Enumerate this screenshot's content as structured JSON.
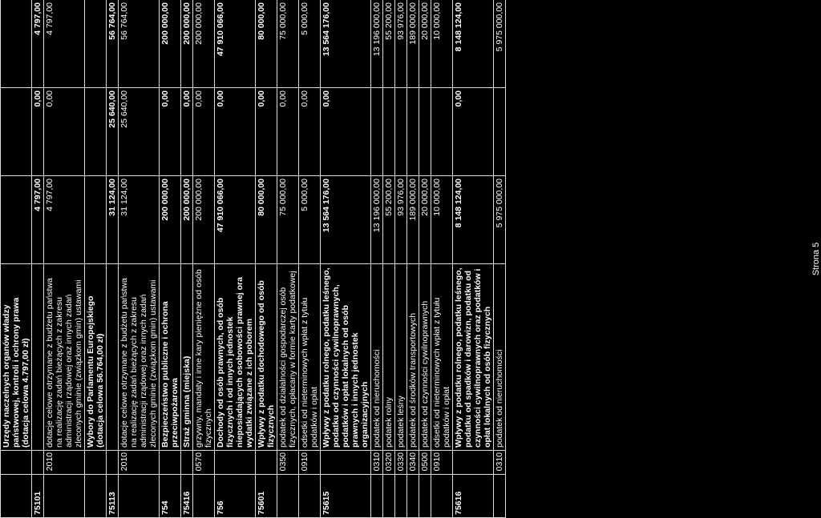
{
  "rows": [
    {
      "sec": "",
      "code": "",
      "desc": "Urzędy naczelnych organów władzy państwowej, kontroli i ochrony prawa (dotacja celowa 4.797,00 zł)",
      "a": "",
      "b": "",
      "c": "",
      "bold": true
    },
    {
      "sec": "75101",
      "code": "",
      "desc": "",
      "a": "4 797,00",
      "b": "0,00",
      "c": "4 797,00",
      "bold": true
    },
    {
      "sec": "",
      "code": "2010",
      "desc": "dotacje celowe otrzymane z budżetu państwa na realizację zadań bieżących z zakresu administracji rządowej oraz innych zadań zleconych gminie (związkom gmin) ustawami",
      "a": "4 797,00",
      "b": "0,00",
      "c": "4 797,00",
      "bold": false
    },
    {
      "sec": "",
      "code": "",
      "desc": "Wybory do Parlamentu Europejskiego (dotacja celowa 56.764,00 zł)",
      "a": "",
      "b": "",
      "c": "",
      "bold": true
    },
    {
      "sec": "75113",
      "code": "",
      "desc": "",
      "a": "31 124,00",
      "b": "25 640,00",
      "c": "56 764,00",
      "bold": true
    },
    {
      "sec": "",
      "code": "2010",
      "desc": "dotacje celowe otrzymane z budżetu państwa na realizację zadań bieżących z zakresu administracji rządowej oraz innych zadań zleconych gminie (związkom gmin) ustawami",
      "a": "31 124,00",
      "b": "25 640,00",
      "c": "56 764,00",
      "bold": false
    },
    {
      "sec": "754",
      "code": "",
      "desc": "Bezpieczeństwo publiczne i ochrona przeciwpożarowa",
      "a": "200 000,00",
      "b": "0,00",
      "c": "200 000,00",
      "bold": true
    },
    {
      "sec": "75416",
      "code": "",
      "desc": "Straż gminna (miejska)",
      "a": "200 000,00",
      "b": "0,00",
      "c": "200 000,00",
      "bold": true
    },
    {
      "sec": "",
      "code": "0570",
      "desc": "grzywny, mandaty i inne kary pieniężne od osób fizycznych",
      "a": "200 000,00",
      "b": "0,00",
      "c": "200 000,00",
      "bold": false
    },
    {
      "sec": "756",
      "code": "",
      "desc": "Dochody od osób prawnych, od osób fizycznych i od innych jednostek nieposiadających osobowości prawnej ora wydatki związane z ich poborem",
      "a": "47 910 066,00",
      "b": "0,00",
      "c": "47 910 066,00",
      "bold": true
    },
    {
      "sec": "75601",
      "code": "",
      "desc": "Wpływy z podatku dochodowego od osób fizycznych",
      "a": "80 000,00",
      "b": "0,00",
      "c": "80 000,00",
      "bold": true
    },
    {
      "sec": "",
      "code": "0350",
      "desc": "podatek od działalności gospodarczej osób fizycznych, opłacany w formie karty podatkowej",
      "a": "75 000,00",
      "b": "0,00",
      "c": "75 000,00",
      "bold": false
    },
    {
      "sec": "",
      "code": "0910",
      "desc": "odsetki od nieterminowych wpłat z tytułu podatków i opłat",
      "a": "5 000,00",
      "b": "0,00",
      "c": "5 000,00",
      "bold": false
    },
    {
      "sec": "75615",
      "code": "",
      "desc": "Wpływy z podatku rolnego, podatku leśnego, podatku od czynności cywilnoprawnych, podatków i opłat lokalnych od osób prawnych i innych jednostek organizacyjnych",
      "a": "13 564 176,00",
      "b": "0,00",
      "c": "13 564 176,00",
      "bold": true
    },
    {
      "sec": "",
      "code": "0310",
      "desc": "podatek od nieruchomości",
      "a": "13 196 000,00",
      "b": "",
      "c": "13 196 000,00",
      "bold": false
    },
    {
      "sec": "",
      "code": "0320",
      "desc": "podatek rolny",
      "a": "55 200,00",
      "b": "",
      "c": "55 200,00",
      "bold": false
    },
    {
      "sec": "",
      "code": "0330",
      "desc": "podatek leśny",
      "a": "93 976,00",
      "b": "",
      "c": "93 976,00",
      "bold": false
    },
    {
      "sec": "",
      "code": "0340",
      "desc": "podatek od środków transportowych",
      "a": "189 000,00",
      "b": "",
      "c": "189 000,00",
      "bold": false
    },
    {
      "sec": "",
      "code": "0500",
      "desc": "podatek od czynności cywilnoprawnych",
      "a": "20 000,00",
      "b": "",
      "c": "20 000,00",
      "bold": false
    },
    {
      "sec": "",
      "code": "0910",
      "desc": "odsetki od nieterminowych wpłat z tytułu podatków i opłat",
      "a": "10 000,00",
      "b": "",
      "c": "10 000,00",
      "bold": false
    },
    {
      "sec": "75616",
      "code": "",
      "desc": "Wpływy z podatku rolnego, podatku leśnego, podatku od spadków i darowizn, podatku od czynności cywilnoprawnych oraz podatków i opłat lokalnych od osób fizycznych",
      "a": "8 148 124,00",
      "b": "0,00",
      "c": "8 148 124,00",
      "bold": true
    },
    {
      "sec": "",
      "code": "0310",
      "desc": "podatek od nieruchomości",
      "a": "5 975 000,00",
      "b": "",
      "c": "5 975 000,00",
      "bold": false
    }
  ],
  "footer": "Strona 5"
}
